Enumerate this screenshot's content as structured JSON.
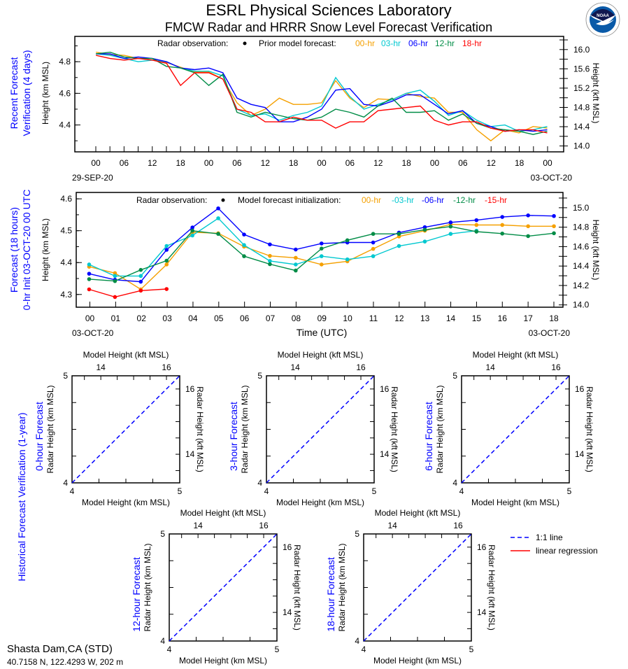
{
  "header": {
    "title": "ESRL Physical Sciences Laboratory",
    "subtitle": "FMCW Radar and HRRR Snow Level Forecast Verification",
    "logo_text": "NOAA"
  },
  "site": {
    "name": "Shasta Dam,CA (STD)",
    "coords": "40.7158 N, 122.4293 W, 202 m"
  },
  "colors": {
    "00-hr": "#f5a000",
    "03-hr": "#00c8d0",
    "06-hr": "#0000ff",
    "12-hr": "#008c46",
    "18-hr": "#ff0000",
    "15-hr": "#ff0000",
    "side_label": "#0000ff",
    "one_to_one": "#0000ff",
    "regression": "#ff0000"
  },
  "chart_data": [
    {
      "type": "line",
      "side_label": [
        "Recent Forecast",
        "Verification (4 days)"
      ],
      "ylabel": "Height (km MSL)",
      "y2label": "Height (kft MSL)",
      "legend": {
        "obs_label": "Radar observation:",
        "model_label": "Prior model forecast:",
        "entries": [
          "00-hr",
          "03-hr",
          "06-hr",
          "12-hr",
          "18-hr"
        ]
      },
      "x_tick_labels": [
        "00",
        "06",
        "12",
        "18",
        "00",
        "06",
        "12",
        "18",
        "00",
        "06",
        "12",
        "18",
        "00",
        "06",
        "12",
        "18",
        "00"
      ],
      "start_date_label": "29-SEP-20",
      "end_date_label": "03-OCT-20",
      "ylim": [
        4.23,
        4.96
      ],
      "y_ticks": [
        4.4,
        4.6,
        4.8
      ],
      "y2_ticks": [
        "14.0",
        "14.4",
        "14.8",
        "15.2",
        "15.6",
        "16.0"
      ],
      "xlim": [
        "2020-09-28 19:30",
        "2020-10-03 03:30"
      ],
      "x": [
        "2020-09-29 00:00",
        "2020-09-29 03:00",
        "2020-09-29 06:00",
        "2020-09-29 09:00",
        "2020-09-29 12:00",
        "2020-09-29 15:00",
        "2020-09-29 18:00",
        "2020-09-29 21:00",
        "2020-09-30 00:00",
        "2020-09-30 03:00",
        "2020-09-30 06:00",
        "2020-09-30 09:00",
        "2020-09-30 12:00",
        "2020-09-30 15:00",
        "2020-09-30 18:00",
        "2020-09-30 21:00",
        "2020-10-01 00:00",
        "2020-10-01 03:00",
        "2020-10-01 06:00",
        "2020-10-01 09:00",
        "2020-10-01 12:00",
        "2020-10-01 15:00",
        "2020-10-01 18:00",
        "2020-10-01 21:00",
        "2020-10-02 00:00",
        "2020-10-02 03:00",
        "2020-10-02 06:00",
        "2020-10-02 09:00",
        "2020-10-02 12:00",
        "2020-10-02 15:00",
        "2020-10-02 18:00",
        "2020-10-02 21:00",
        "2020-10-03 00:00"
      ],
      "series": [
        {
          "name": "00-hr",
          "values": [
            4.86,
            4.845,
            4.84,
            4.82,
            4.82,
            4.795,
            4.765,
            4.735,
            4.735,
            4.69,
            4.54,
            4.46,
            4.5,
            4.57,
            4.53,
            4.53,
            4.54,
            4.68,
            4.57,
            4.51,
            4.565,
            4.56,
            4.6,
            4.58,
            4.57,
            4.48,
            4.48,
            4.37,
            4.3,
            4.37,
            4.35,
            4.39,
            4.38
          ]
        },
        {
          "name": "03-hr",
          "values": [
            4.85,
            4.84,
            4.82,
            4.8,
            4.81,
            4.8,
            4.76,
            4.74,
            4.74,
            4.71,
            4.5,
            4.46,
            4.47,
            4.43,
            4.46,
            4.48,
            4.52,
            4.7,
            4.58,
            4.5,
            4.53,
            4.56,
            4.6,
            4.62,
            4.55,
            4.46,
            4.49,
            4.43,
            4.39,
            4.4,
            4.36,
            4.37,
            4.39
          ]
        },
        {
          "name": "06-hr",
          "values": [
            4.85,
            4.85,
            4.82,
            4.83,
            4.82,
            4.8,
            4.76,
            4.75,
            4.76,
            4.73,
            4.57,
            4.53,
            4.51,
            4.42,
            4.42,
            4.45,
            4.5,
            4.62,
            4.63,
            4.53,
            4.52,
            4.55,
            4.59,
            4.59,
            4.53,
            4.47,
            4.49,
            4.41,
            4.39,
            4.36,
            4.37,
            4.36,
            4.37
          ]
        },
        {
          "name": "12-hr",
          "values": [
            4.85,
            4.86,
            4.83,
            4.82,
            4.82,
            4.77,
            4.76,
            4.73,
            4.65,
            4.72,
            4.48,
            4.45,
            4.48,
            4.46,
            4.44,
            4.43,
            4.45,
            4.5,
            4.48,
            4.45,
            4.52,
            4.57,
            4.48,
            4.48,
            4.49,
            4.43,
            4.47,
            4.41,
            4.38,
            4.37,
            4.36,
            4.34,
            4.36
          ]
        },
        {
          "name": "18-hr",
          "values": [
            4.84,
            4.82,
            4.81,
            4.82,
            4.81,
            4.79,
            4.65,
            4.73,
            4.73,
            4.69,
            4.5,
            4.48,
            4.42,
            4.42,
            4.45,
            4.43,
            4.43,
            4.38,
            4.42,
            4.42,
            4.49,
            4.5,
            4.51,
            4.52,
            4.43,
            4.4,
            4.42,
            4.42,
            4.38,
            4.36,
            4.37,
            4.37,
            4.35
          ]
        }
      ]
    },
    {
      "type": "line",
      "side_label": [
        "Forecast (18 hours)",
        "0-hr Init 03-OCT-20 00 UTC"
      ],
      "ylabel": "Height (km MSL)",
      "y2label": "Height (kft MSL)",
      "xlabel": "Time (UTC)",
      "legend": {
        "obs_label": "Radar observation:",
        "model_label": "Model forecast initialization:",
        "entries": [
          "00-hr",
          "-03-hr",
          "-06-hr",
          "-12-hr",
          "-15-hr"
        ]
      },
      "x_tick_labels": [
        "00",
        "01",
        "02",
        "03",
        "04",
        "05",
        "06",
        "07",
        "08",
        "09",
        "10",
        "11",
        "12",
        "13",
        "14",
        "15",
        "16",
        "17",
        "18"
      ],
      "start_date_label": "03-OCT-20",
      "end_date_label": "03-OCT-20",
      "ylim": [
        4.26,
        4.62
      ],
      "y_ticks": [
        4.3,
        4.4,
        4.5,
        4.6
      ],
      "y2_ticks": [
        "14.0",
        "14.2",
        "14.4",
        "14.6",
        "14.8",
        "15.0"
      ],
      "xlim": [
        -0.5,
        18.35
      ],
      "series": [
        {
          "name": "00-hr",
          "color_key": "00-hr",
          "x": [
            0,
            1,
            2,
            3,
            4,
            5,
            6,
            7,
            8,
            9,
            10,
            11,
            12,
            13,
            14,
            15,
            16,
            17,
            18
          ],
          "values": [
            4.387,
            4.367,
            4.316,
            4.394,
            4.495,
            4.492,
            4.45,
            4.421,
            4.415,
            4.394,
            4.404,
            4.443,
            4.482,
            4.5,
            4.52,
            4.518,
            4.518,
            4.514,
            4.514
          ]
        },
        {
          "name": "-03-hr",
          "color_key": "03-hr",
          "x": [
            0,
            1,
            2,
            3,
            4,
            5,
            6,
            7,
            8,
            9,
            10,
            11,
            12,
            13,
            14,
            15
          ],
          "values": [
            4.394,
            4.358,
            4.358,
            4.452,
            4.485,
            4.539,
            4.455,
            4.405,
            4.394,
            4.42,
            4.41,
            4.42,
            4.452,
            4.466,
            4.49,
            4.5
          ]
        },
        {
          "name": "-06-hr",
          "color_key": "06-hr",
          "x": [
            0,
            1,
            2,
            3,
            4,
            5,
            6,
            7,
            8,
            9,
            10,
            11,
            12,
            13,
            14,
            15,
            16,
            17,
            18
          ],
          "values": [
            4.365,
            4.346,
            4.34,
            4.44,
            4.51,
            4.57,
            4.488,
            4.457,
            4.441,
            4.46,
            4.463,
            4.463,
            4.494,
            4.511,
            4.526,
            4.533,
            4.543,
            4.548,
            4.546
          ]
        },
        {
          "name": "-12-hr",
          "color_key": "12-hr",
          "x": [
            0,
            1,
            2,
            3,
            4,
            5,
            6,
            7,
            8,
            9,
            10,
            11,
            12,
            13,
            14,
            15,
            16,
            17,
            18
          ],
          "values": [
            4.348,
            4.342,
            4.377,
            4.406,
            4.5,
            4.49,
            4.42,
            4.395,
            4.375,
            4.444,
            4.47,
            4.49,
            4.49,
            4.503,
            4.513,
            4.497,
            4.491,
            4.483,
            4.492
          ]
        },
        {
          "name": "-15-hr",
          "color_key": "15-hr",
          "x": [
            0,
            1,
            2,
            3
          ],
          "values": [
            4.316,
            4.292,
            4.312,
            4.317
          ]
        }
      ]
    },
    {
      "type": "scatter",
      "group_label": "Historical Forecast Verification (1-year)",
      "legend": [
        {
          "label": "1:1 line",
          "style": "dashed",
          "color_key": "one_to_one"
        },
        {
          "label": "linear regression",
          "style": "solid",
          "color_key": "regression"
        }
      ],
      "panels": [
        {
          "title": "0-hour Forecast",
          "xlabel": "Model Height (km MSL)",
          "ylabel": "Radar Height (km MSL)",
          "x2label": "Model Height (kft MSL)",
          "y2label": "Radar Height (kft MSL)",
          "xlim": [
            4,
            5
          ],
          "ylim": [
            4,
            5
          ],
          "tick_labels": [
            "4",
            "5"
          ],
          "kft_tick_labels": [
            "14",
            "16"
          ],
          "points": []
        },
        {
          "title": "3-hour Forecast",
          "xlabel": "Model Height (km MSL)",
          "ylabel": "Radar Height (km MSL)",
          "x2label": "Model Height (kft MSL)",
          "y2label": "Radar Height (kft MSL)",
          "xlim": [
            4,
            5
          ],
          "ylim": [
            4,
            5
          ],
          "tick_labels": [
            "4",
            "5"
          ],
          "kft_tick_labels": [
            "14",
            "16"
          ],
          "points": []
        },
        {
          "title": "6-hour Forecast",
          "xlabel": "Model Height (km MSL)",
          "ylabel": "Radar Height (km MSL)",
          "x2label": "Model Height (kft MSL)",
          "y2label": "Radar Height (kft MSL)",
          "xlim": [
            4,
            5
          ],
          "ylim": [
            4,
            5
          ],
          "tick_labels": [
            "4",
            "5"
          ],
          "kft_tick_labels": [
            "14",
            "16"
          ],
          "points": []
        },
        {
          "title": "12-hour Forecast",
          "xlabel": "Model Height (km MSL)",
          "ylabel": "Radar Height (km MSL)",
          "x2label": "Model Height (kft MSL)",
          "y2label": "Radar Height (kft MSL)",
          "xlim": [
            4,
            5
          ],
          "ylim": [
            4,
            5
          ],
          "tick_labels": [
            "4",
            "5"
          ],
          "kft_tick_labels": [
            "14",
            "16"
          ],
          "points": []
        },
        {
          "title": "18-hour Forecast",
          "xlabel": "Model Height (km MSL)",
          "ylabel": "Radar Height (km MSL)",
          "x2label": "Model Height (kft MSL)",
          "y2label": "Radar Height (kft MSL)",
          "xlim": [
            4,
            5
          ],
          "ylim": [
            4,
            5
          ],
          "tick_labels": [
            "4",
            "5"
          ],
          "kft_tick_labels": [
            "14",
            "16"
          ],
          "points": []
        }
      ]
    }
  ]
}
